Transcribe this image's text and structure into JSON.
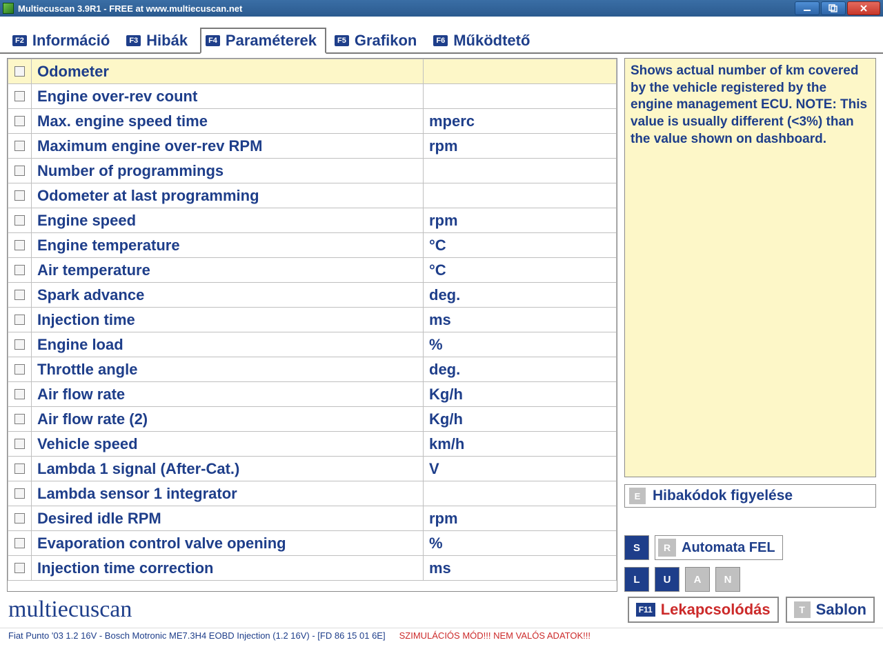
{
  "window": {
    "title": "Multiecuscan 3.9R1 - FREE at www.multiecuscan.net"
  },
  "tabs": [
    {
      "key": "F2",
      "label": "Információ"
    },
    {
      "key": "F3",
      "label": "Hibák"
    },
    {
      "key": "F4",
      "label": "Paraméterek"
    },
    {
      "key": "F5",
      "label": "Grafikon"
    },
    {
      "key": "F6",
      "label": "Működtető"
    }
  ],
  "activeTabIndex": 2,
  "parameters": [
    {
      "name": "Odometer",
      "unit": "",
      "selected": true
    },
    {
      "name": "Engine over-rev count",
      "unit": ""
    },
    {
      "name": "Max. engine speed time",
      "unit": "mperc"
    },
    {
      "name": "Maximum engine over-rev RPM",
      "unit": "rpm"
    },
    {
      "name": "Number of programmings",
      "unit": ""
    },
    {
      "name": "Odometer at last programming",
      "unit": ""
    },
    {
      "name": "Engine speed",
      "unit": "rpm"
    },
    {
      "name": "Engine temperature",
      "unit": "°C"
    },
    {
      "name": "Air temperature",
      "unit": "°C"
    },
    {
      "name": "Spark advance",
      "unit": "deg."
    },
    {
      "name": "Injection time",
      "unit": "ms"
    },
    {
      "name": "Engine load",
      "unit": "%"
    },
    {
      "name": "Throttle angle",
      "unit": "deg."
    },
    {
      "name": "Air flow rate",
      "unit": "Kg/h"
    },
    {
      "name": "Air flow rate (2)",
      "unit": "Kg/h"
    },
    {
      "name": "Vehicle speed",
      "unit": "km/h"
    },
    {
      "name": "Lambda 1 signal (After-Cat.)",
      "unit": "V"
    },
    {
      "name": "Lambda sensor 1 integrator",
      "unit": ""
    },
    {
      "name": "Desired idle RPM",
      "unit": "rpm"
    },
    {
      "name": "Evaporation control valve opening",
      "unit": "%"
    },
    {
      "name": "Injection time correction",
      "unit": "ms"
    }
  ],
  "info": {
    "text": "Shows actual number of km covered by the vehicle registered by the engine management ECU. NOTE: This value is usually different (<3%) than the value shown on dashboard."
  },
  "sideButtons": {
    "watchErrors": {
      "key": "E",
      "label": "Hibakódok figyelése"
    },
    "autoUp": {
      "key": "R",
      "label": "Automata FEL"
    },
    "toggleS": "S",
    "toggleL": "L",
    "toggleU": "U",
    "toggleA": "A",
    "toggleN": "N"
  },
  "bottom": {
    "logo": "multiecuscan",
    "disconnect": {
      "key": "F11",
      "label": "Lekapcsolódás"
    },
    "template": {
      "key": "T",
      "label": "Sablon"
    }
  },
  "status": {
    "ecu": "Fiat Punto '03 1.2 16V - Bosch Motronic ME7.3H4 EOBD Injection (1.2 16V) - [FD 86 15 01 6E]",
    "sim": "SZIMULÁCIÓS MÓD!!! NEM VALÓS ADATOK!!!"
  },
  "colors": {
    "primary": "#1e3e8a",
    "highlight": "#fdf7c8",
    "danger": "#cc2a2a",
    "border": "#8a8a8a"
  }
}
